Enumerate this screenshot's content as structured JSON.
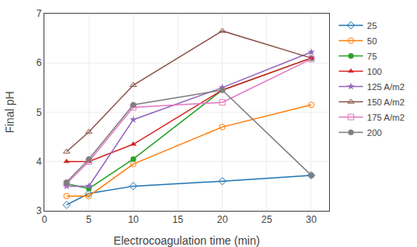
{
  "chart_data": {
    "type": "line",
    "x": [
      2.5,
      5,
      10,
      20,
      30
    ],
    "series": [
      {
        "name": "25",
        "values": [
          3.12,
          3.35,
          3.5,
          3.6,
          3.72
        ],
        "marker": "diamond-open"
      },
      {
        "name": "50",
        "values": [
          3.3,
          3.3,
          3.95,
          4.7,
          5.15
        ],
        "marker": "circle-open"
      },
      {
        "name": "75",
        "values": [
          3.55,
          3.45,
          4.05,
          5.45,
          6.1
        ],
        "marker": "circle"
      },
      {
        "name": "100",
        "values": [
          4.0,
          4.0,
          4.35,
          5.45,
          6.1
        ],
        "marker": "triangle-up"
      },
      {
        "name": "125 A/m2",
        "values": [
          3.5,
          3.5,
          4.85,
          5.5,
          6.22
        ],
        "marker": "star"
      },
      {
        "name": "150 A/m2",
        "values": [
          4.2,
          4.6,
          5.55,
          6.65,
          6.1
        ],
        "marker": "triangle-up-open"
      },
      {
        "name": "175 A/m2",
        "values": [
          3.55,
          4.0,
          5.1,
          5.2,
          6.08
        ],
        "marker": "square-open"
      },
      {
        "name": "200",
        "values": [
          3.58,
          4.05,
          5.15,
          5.45,
          3.72
        ],
        "marker": "circle"
      }
    ],
    "xlabel": "Electrocoagulation time (min)",
    "ylabel": "Final pH",
    "xlim": [
      0,
      32
    ],
    "ylim": [
      3,
      7
    ],
    "xticks": [
      0,
      5,
      10,
      15,
      20,
      25,
      30
    ],
    "yticks": [
      3,
      4,
      5,
      6,
      7
    ],
    "grid": true,
    "legend": "right"
  }
}
